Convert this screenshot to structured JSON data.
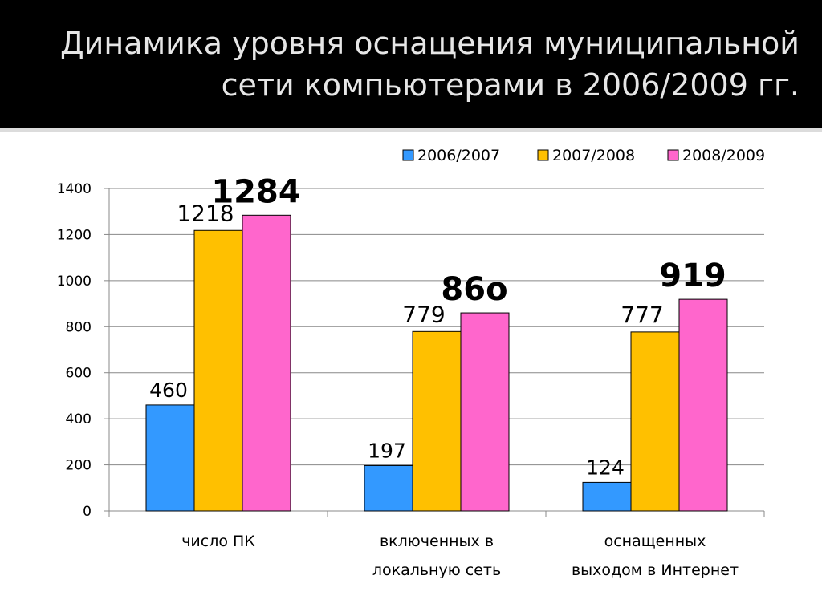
{
  "slide": {
    "title_line1": "Динамика уровня оснащения муниципальной",
    "title_line2": "сети компьютерами в 2006/2009 гг."
  },
  "chart_data": {
    "type": "bar",
    "title": "",
    "xlabel": "",
    "ylabel": "",
    "ylim": [
      0,
      1400
    ],
    "yticks": [
      0,
      200,
      400,
      600,
      800,
      1000,
      1200,
      1400
    ],
    "grid": true,
    "legend_position": "top-right",
    "categories": [
      [
        "число ПК"
      ],
      [
        "включенных в",
        "локальную сеть"
      ],
      [
        "оснащенных",
        "выходом в Интернет"
      ]
    ],
    "series": [
      {
        "name": "2006/2007",
        "color": "#3399ff",
        "values": [
          460,
          197,
          124
        ]
      },
      {
        "name": "2007/2008",
        "color": "#ffc000",
        "values": [
          1218,
          779,
          777
        ]
      },
      {
        "name": "2008/2009",
        "color": "#ff66cc",
        "values": [
          1284,
          860,
          919
        ]
      }
    ],
    "data_labels": [
      [
        "460",
        "197",
        "124"
      ],
      [
        "1218",
        "779",
        "777"
      ],
      [
        "1284",
        "86o",
        "919"
      ]
    ]
  }
}
